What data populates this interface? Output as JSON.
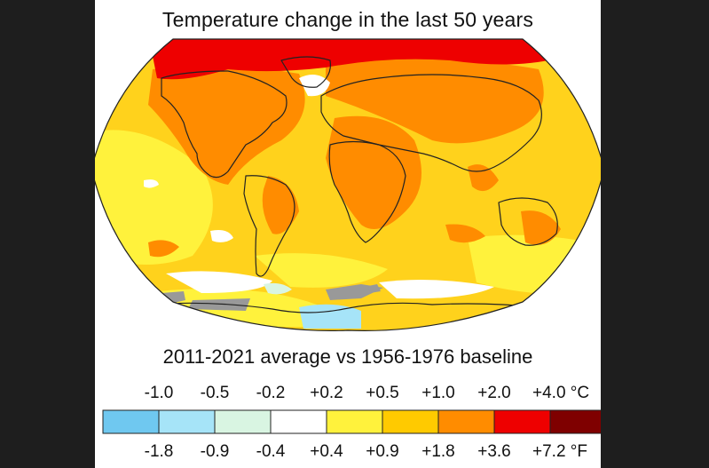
{
  "title": "Temperature change in the last 50 years",
  "subtitle": "2011-2021 average vs 1956-1976 baseline",
  "legend": {
    "celsius_labels": [
      "-1.0",
      "-0.5",
      "-0.2",
      "+0.2",
      "+0.5",
      "+1.0",
      "+2.0",
      "+4.0 °C"
    ],
    "fahrenheit_labels": [
      "-1.8",
      "-0.9",
      "-0.4",
      "+0.4",
      "+0.9",
      "+1.8",
      "+3.6",
      "+7.2 °F"
    ],
    "colors": [
      "#6fc8f0",
      "#a6e4f8",
      "#d9f5e2",
      "#ffffff",
      "#fff23c",
      "#ffca00",
      "#ff8c00",
      "#ee0000",
      "#7f0000"
    ]
  },
  "map_colors": {
    "ocean_base": "#ffd21c",
    "warm": "#ff8c00",
    "hot": "#ee0000",
    "mild": "#fff23c",
    "neutral": "#ffffff",
    "cool": "#d9f5e2",
    "cold": "#a6e4f8",
    "no_data": "#999999",
    "coast": "#222222"
  }
}
